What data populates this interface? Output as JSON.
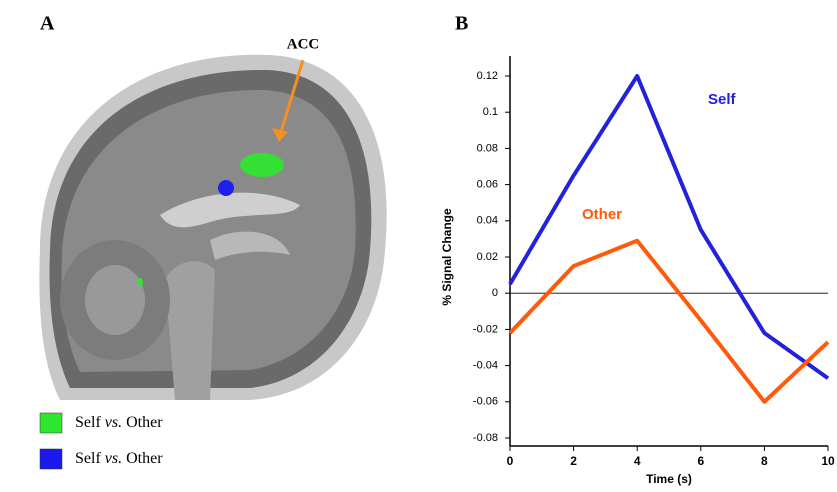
{
  "panels": [
    "A",
    "B"
  ],
  "figure_a": {
    "annotation": "ACC",
    "legend": [
      {
        "color": "#2ee62e",
        "label": [
          "Self",
          "vs.",
          "Other"
        ]
      },
      {
        "color": "#1a1aee",
        "label": [
          "Self",
          "vs.",
          "Other"
        ]
      }
    ]
  },
  "chart_data": {
    "type": "line",
    "x": [
      0,
      2,
      4,
      6,
      8,
      10
    ],
    "series": [
      {
        "name": "Self",
        "color": "#2222dd",
        "values": [
          0.005,
          0.065,
          0.12,
          0.035,
          -0.022,
          -0.047
        ]
      },
      {
        "name": "Other",
        "color": "#ff5a0a",
        "values": [
          -0.022,
          0.015,
          0.029,
          -0.015,
          -0.06,
          -0.027
        ]
      }
    ],
    "xlabel": "Time (s)",
    "ylabel": "% Signal Change",
    "xlim": [
      0,
      10
    ],
    "xticks": [
      0,
      2,
      4,
      6,
      8,
      10
    ],
    "ylim": [
      -0.08,
      0.12
    ],
    "yticks": [
      -0.08,
      -0.06,
      -0.04,
      -0.02,
      0,
      0.02,
      0.04,
      0.06,
      0.08,
      0.1,
      0.12
    ],
    "zero_line": true
  }
}
